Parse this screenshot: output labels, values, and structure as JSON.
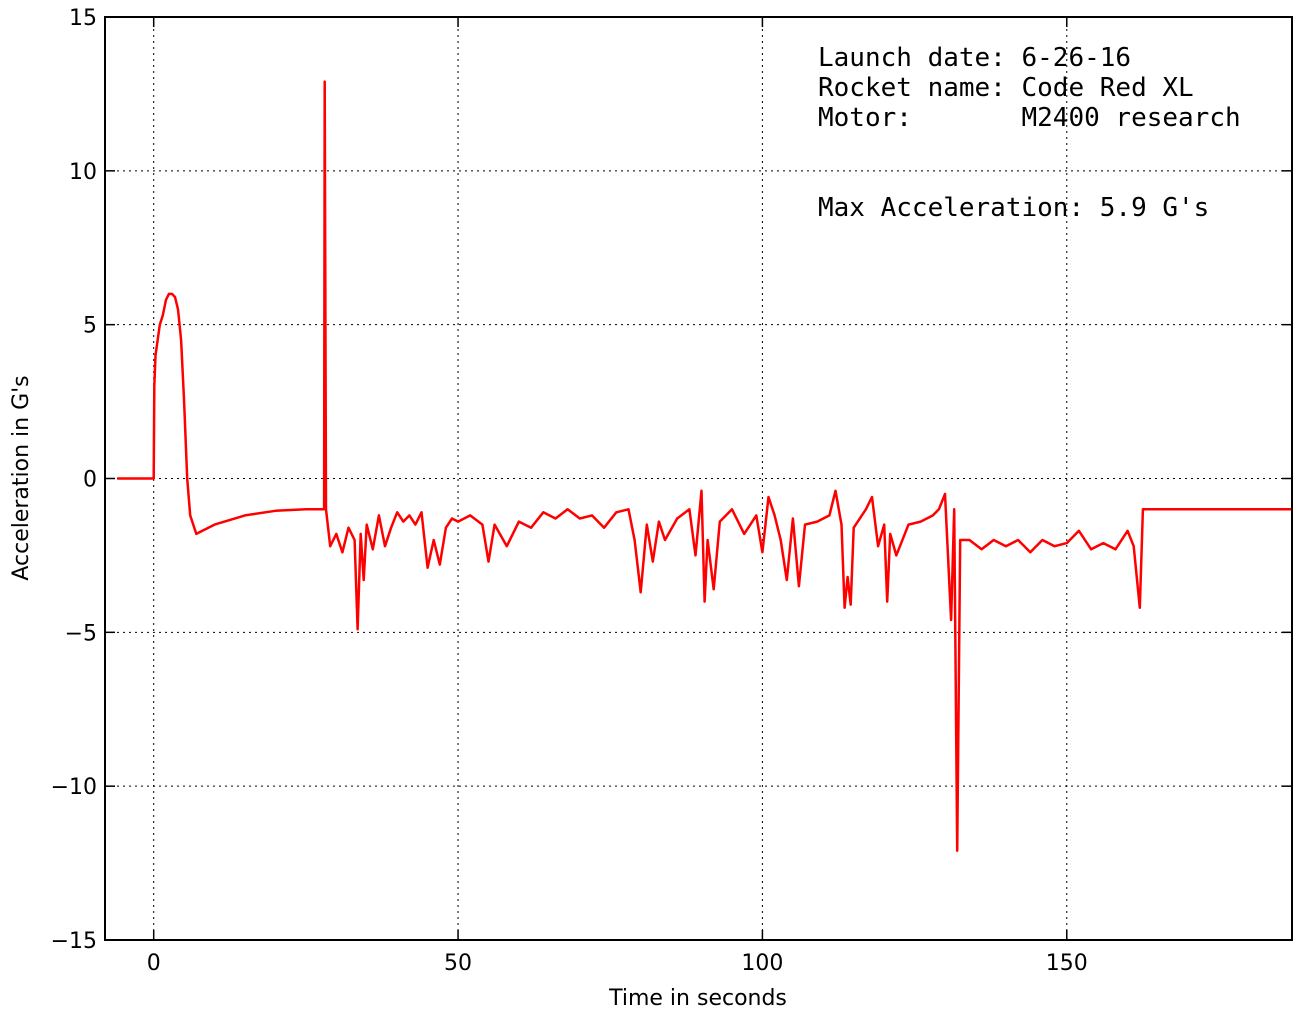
{
  "chart_data": {
    "type": "line",
    "xlabel": "Time in seconds",
    "ylabel": "Acceleration in G's",
    "annotations": [
      "Launch date: 6-26-16",
      "Rocket name: Code Red XL",
      "Motor:       M2400 research",
      "Max Acceleration: 5.9 G's"
    ],
    "xlim": [
      -8,
      187
    ],
    "ylim": [
      -15,
      15
    ],
    "xticks": [
      0,
      50,
      100,
      150
    ],
    "yticks": [
      {
        "value": -15,
        "label": "−15"
      },
      {
        "value": -10,
        "label": "−10"
      },
      {
        "value": -5,
        "label": "−5"
      },
      0,
      5,
      10,
      15
    ],
    "grid": true,
    "series": [
      {
        "color": "#ff0000",
        "x": [
          -6,
          -0.1,
          0,
          0.1,
          0.3,
          1,
          1.5,
          2,
          2.5,
          3,
          3.5,
          4,
          4.5,
          5,
          5.5,
          6,
          7,
          8,
          10,
          15,
          20,
          25,
          28,
          28.1,
          28.3,
          29,
          30,
          31,
          32,
          33,
          33.5,
          34,
          34.5,
          35,
          36,
          37,
          38,
          39,
          40,
          41,
          42,
          43,
          44,
          45,
          46,
          47,
          48,
          49,
          50,
          52,
          54,
          55,
          56,
          58,
          60,
          62,
          64,
          66,
          68,
          70,
          72,
          74,
          76,
          78,
          79,
          80,
          81,
          82,
          83,
          84,
          86,
          88,
          89,
          90,
          90.5,
          91,
          92,
          93,
          95,
          97,
          99,
          100,
          101,
          102,
          103,
          104,
          105,
          106,
          107,
          109,
          111,
          112,
          113,
          113.5,
          114,
          114.5,
          115,
          117,
          118,
          119,
          120,
          120.5,
          121,
          122,
          124,
          126,
          128,
          129,
          130,
          131,
          131.5,
          132,
          132.5,
          134,
          136,
          138,
          140,
          142,
          144,
          146,
          148,
          150,
          152,
          154,
          156,
          158,
          160,
          161,
          162,
          162.5,
          165,
          170,
          180,
          187
        ],
        "values": [
          0,
          0,
          0,
          3,
          4,
          5,
          5.3,
          5.8,
          6.0,
          6.0,
          5.9,
          5.5,
          4.5,
          2.5,
          0,
          -1.2,
          -1.8,
          -1.7,
          -1.5,
          -1.2,
          -1.05,
          -1.0,
          -1.0,
          12.9,
          -1.0,
          -2.2,
          -1.8,
          -2.4,
          -1.6,
          -2.0,
          -4.9,
          -1.8,
          -3.3,
          -1.5,
          -2.3,
          -1.2,
          -2.2,
          -1.6,
          -1.1,
          -1.4,
          -1.2,
          -1.5,
          -1.1,
          -2.9,
          -2.0,
          -2.8,
          -1.6,
          -1.3,
          -1.4,
          -1.2,
          -1.5,
          -2.7,
          -1.5,
          -2.2,
          -1.4,
          -1.6,
          -1.1,
          -1.3,
          -1.0,
          -1.3,
          -1.2,
          -1.6,
          -1.1,
          -1.0,
          -2.0,
          -3.7,
          -1.5,
          -2.7,
          -1.4,
          -2.0,
          -1.3,
          -1.0,
          -2.5,
          -0.4,
          -4.0,
          -2.0,
          -3.6,
          -1.4,
          -1.0,
          -1.8,
          -1.2,
          -2.4,
          -0.6,
          -1.2,
          -2.0,
          -3.3,
          -1.3,
          -3.5,
          -1.5,
          -1.4,
          -1.2,
          -0.4,
          -1.5,
          -4.2,
          -3.2,
          -4.1,
          -1.6,
          -1.0,
          -0.6,
          -2.2,
          -1.5,
          -4.0,
          -1.8,
          -2.5,
          -1.5,
          -1.4,
          -1.2,
          -1.0,
          -0.5,
          -4.6,
          -1.0,
          -12.1,
          -2.0,
          -2.0,
          -2.3,
          -2.0,
          -2.2,
          -2.0,
          -2.4,
          -2.0,
          -2.2,
          -2.1,
          -1.7,
          -2.3,
          -2.1,
          -2.3,
          -1.7,
          -2.2,
          -4.2,
          -1.0,
          -1.0,
          -1.0,
          -1.0,
          -1.0
        ]
      }
    ]
  }
}
